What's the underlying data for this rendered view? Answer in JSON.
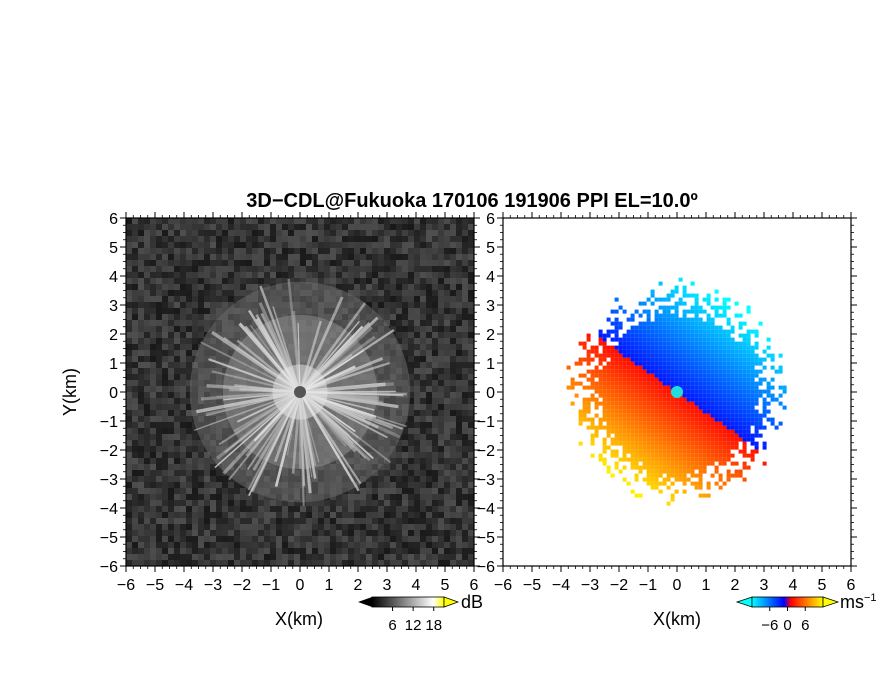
{
  "title": "3D−CDL@Fukuoka 170106 191906 PPI EL=10.0º",
  "chart_data": [
    {
      "type": "heatmap",
      "field": "reflectivity",
      "xlabel": "X(km)",
      "ylabel": "Y(km)",
      "xlim": [
        -6,
        6
      ],
      "ylim": [
        -6,
        6
      ],
      "xticks": [
        "−6",
        "−5",
        "−4",
        "−3",
        "−2",
        "−1",
        "0",
        "1",
        "2",
        "3",
        "4",
        "5",
        "6"
      ],
      "yticks": [
        "−6",
        "−5",
        "−4",
        "−3",
        "−2",
        "−1",
        "0",
        "1",
        "2",
        "3",
        "4",
        "5",
        "6"
      ],
      "echo_radius_km": 3.8,
      "colorbar": {
        "unit": "dB",
        "ticks": [
          "6",
          "12",
          "18"
        ],
        "tick_values": [
          6,
          12,
          18
        ],
        "range": [
          0,
          21
        ],
        "colors": [
          "#000000",
          "#ffffff",
          "#ffff00"
        ]
      }
    },
    {
      "type": "heatmap",
      "field": "doppler_velocity",
      "xlabel": "X(km)",
      "xlim": [
        -6,
        6
      ],
      "ylim": [
        -6,
        6
      ],
      "xticks": [
        "−6",
        "−5",
        "−4",
        "−3",
        "−2",
        "−1",
        "0",
        "1",
        "2",
        "3",
        "4",
        "5",
        "6"
      ],
      "yticks": [
        "−6",
        "−5",
        "−4",
        "−3",
        "−2",
        "−1",
        "0",
        "1",
        "2",
        "3",
        "4",
        "5",
        "6"
      ],
      "echo_radius_km": 3.6,
      "colorbar": {
        "unit": "ms",
        "unit_exp": "−1",
        "ticks": [
          "−6",
          "0",
          "6"
        ],
        "tick_values": [
          -6,
          0,
          6
        ],
        "range": [
          -12,
          12
        ],
        "colors": [
          "#00ffff",
          "#0000ff",
          "#ff0000",
          "#ffff00"
        ]
      }
    }
  ]
}
